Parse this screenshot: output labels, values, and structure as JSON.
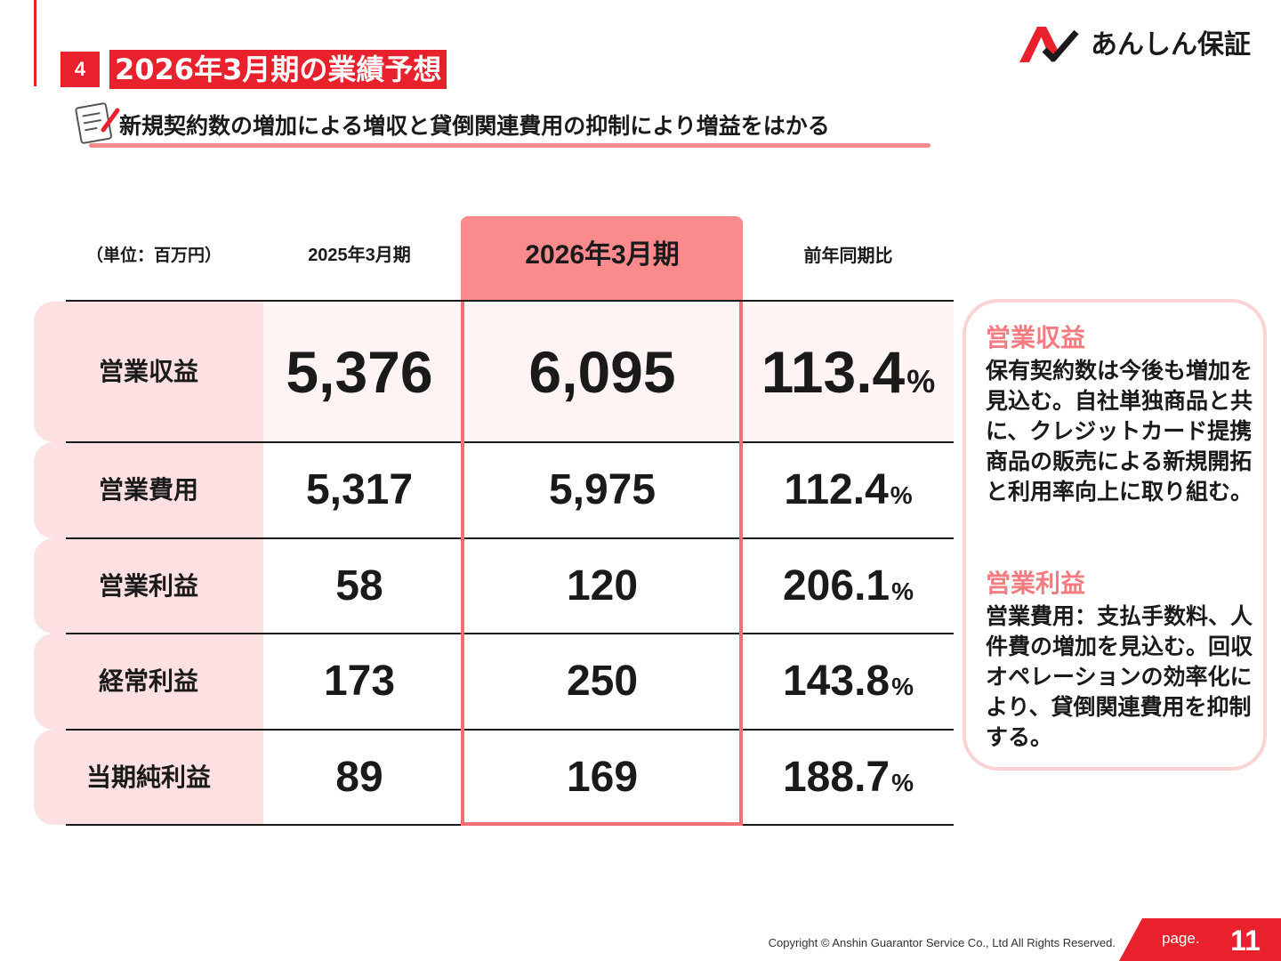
{
  "header": {
    "section_number": "4",
    "title": "2026年3月期の業績予想",
    "subtitle": "新規契約数の増加による増収と貸倒関連費用の抑制により増益をはかる",
    "logo_text": "あんしん保証",
    "icons": [
      "memo-icon",
      "logo-mark-icon"
    ]
  },
  "table": {
    "unit_label": "（単位：百万円）",
    "columns": [
      "2025年3月期",
      "2026年3月期",
      "前年同期比"
    ],
    "highlight_column": "2026年3月期",
    "percent_sign": "%",
    "rows": [
      {
        "label": "営業収益",
        "fy2025": "5,376",
        "fy2026": "6,095",
        "yoy": "113.4"
      },
      {
        "label": "営業費用",
        "fy2025": "5,317",
        "fy2026": "5,975",
        "yoy": "112.4"
      },
      {
        "label": "営業利益",
        "fy2025": "58",
        "fy2026": "120",
        "yoy": "206.1"
      },
      {
        "label": "経常利益",
        "fy2025": "173",
        "fy2026": "250",
        "yoy": "143.8"
      },
      {
        "label": "当期純利益",
        "fy2025": "89",
        "fy2026": "169",
        "yoy": "188.7"
      }
    ]
  },
  "notes": [
    {
      "heading": "営業収益",
      "body": "保有契約数は今後も増加を見込む。自社単独商品と共に、クレジットカード提携商品の販売による新規開拓と利用率向上に取り組む。"
    },
    {
      "heading": "営業利益",
      "body": "営業費用：支払手数料、人件費の増加を見込む。回収オペレーションの効率化により、貸倒関連費用を抑制する。"
    }
  ],
  "footer": {
    "copyright": "Copyright © Anshin Guarantor Service Co., Ltd All Rights Reserved.",
    "page_label": "page.",
    "page_number": "11"
  },
  "colors": {
    "brand_red": "#e8212d",
    "highlight_pink": "#fb8a8d",
    "label_pink": "#fde1e2",
    "note_heading": "#f47c80"
  }
}
